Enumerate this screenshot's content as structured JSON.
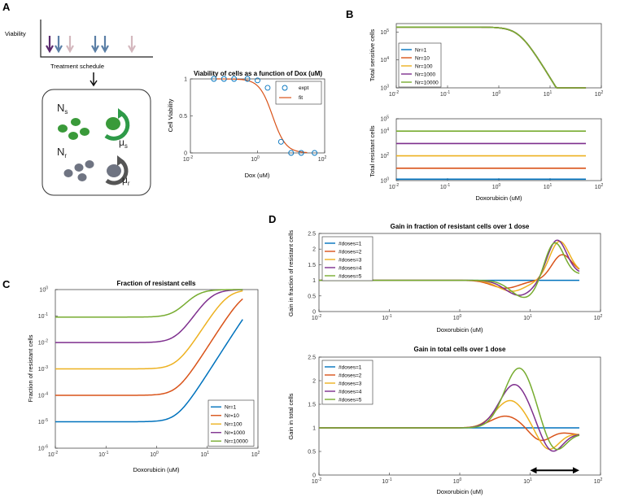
{
  "panels": {
    "a": "A",
    "b": "B",
    "c": "C",
    "d": "D"
  },
  "schematic": {
    "viability_label": "Viability",
    "schedule_label": "Treatment schedule",
    "ns": "N",
    "ns_sub": "s",
    "nr": "N",
    "nr_sub": "r",
    "mu_s": "μ",
    "mu_s_sub": "s",
    "mu_r": "μ",
    "mu_r_sub": "r",
    "arrow_colors": [
      "#5b2a6e",
      "#5b7fa6",
      "#d4b8be"
    ]
  },
  "colors": {
    "blue": "#0072bd",
    "orange": "#d95319",
    "yellow": "#edb120",
    "purple": "#7e2f8e",
    "green": "#77ac30",
    "expt": "#0072bd",
    "fit": "#d95319"
  },
  "chart_data": [
    {
      "id": "viability",
      "type": "scatter",
      "title": "Viability of cells as a function of Dox (uM)",
      "xlabel": "Dox (uM)",
      "ylabel": "Cell Viability",
      "xscale": "log",
      "xlim": [
        0.01,
        100
      ],
      "ylim": [
        0,
        1
      ],
      "xticks": [
        "10",
        "10",
        "10"
      ],
      "xtick_exp": [
        "-2",
        "0",
        "2"
      ],
      "yticks": [
        "0",
        "0.5",
        "1"
      ],
      "legend": {
        "expt": "expt",
        "fit": "fit",
        "position": "top-right"
      },
      "series": [
        {
          "name": "expt",
          "x": [
            0.05,
            0.1,
            0.2,
            0.5,
            1,
            2,
            5,
            10,
            20,
            50
          ],
          "y": [
            1.0,
            1.0,
            1.0,
            1.0,
            0.98,
            0.88,
            0.15,
            0.0,
            0.0,
            0.0
          ]
        },
        {
          "name": "fit",
          "curve": "hill",
          "top": 1.0,
          "ic50": 2.8,
          "hill": 2.2
        }
      ]
    },
    {
      "id": "sensitive",
      "type": "line",
      "title": "",
      "xlabel": "",
      "ylabel": "Total sensitive cells",
      "xscale": "log",
      "yscale": "log",
      "xlim": [
        0.01,
        100
      ],
      "ylim": [
        1000,
        200000
      ],
      "xticks": [
        "10",
        "10",
        "10",
        "10",
        "10"
      ],
      "xtick_exp": [
        "-2",
        "-1",
        "0",
        "1",
        "2"
      ],
      "yticks": [
        "10",
        "10",
        "10"
      ],
      "ytick_exp": [
        "3",
        "4",
        "5"
      ],
      "legend_position": "top-left",
      "series": [
        {
          "name": "Nr=1",
          "start": 150000,
          "ic50": 2.5,
          "hill": 3.0,
          "xmax": 50
        },
        {
          "name": "Nr=10",
          "start": 150000,
          "ic50": 2.5,
          "hill": 3.0,
          "xmax": 50
        },
        {
          "name": "Nr=100",
          "start": 150000,
          "ic50": 2.5,
          "hill": 3.0,
          "xmax": 50
        },
        {
          "name": "Nr=1000",
          "start": 150000,
          "ic50": 2.5,
          "hill": 3.0,
          "xmax": 50
        },
        {
          "name": "Nr=10000",
          "start": 150000,
          "ic50": 2.5,
          "hill": 3.0,
          "xmax": 50
        }
      ]
    },
    {
      "id": "resistant",
      "type": "line",
      "title": "",
      "xlabel": "Doxorubicin (uM)",
      "ylabel": "Total resistant cells",
      "xscale": "log",
      "yscale": "log",
      "xlim": [
        0.01,
        100
      ],
      "ylim": [
        1,
        100000
      ],
      "xticks": [
        "10",
        "10",
        "10",
        "10",
        "10"
      ],
      "xtick_exp": [
        "-2",
        "-1",
        "0",
        "1",
        "2"
      ],
      "yticks": [
        "10",
        "10",
        "10",
        "10"
      ],
      "ytick_exp": [
        "0",
        "2",
        "4",
        "5"
      ],
      "legend_position": "none",
      "series": [
        {
          "name": "Nr=1",
          "value": 1.3
        },
        {
          "name": "Nr=10",
          "value": 10
        },
        {
          "name": "Nr=100",
          "value": 100
        },
        {
          "name": "Nr=1000",
          "value": 1000
        },
        {
          "name": "Nr=10000",
          "value": 10000
        }
      ]
    },
    {
      "id": "fraction",
      "type": "line",
      "title": "Fraction of resistant cells",
      "xlabel": "Doxorubicin (uM)",
      "ylabel": "Fraction of resistant cells",
      "xscale": "log",
      "yscale": "log",
      "xlim": [
        0.01,
        100
      ],
      "ylim": [
        1e-06,
        1
      ],
      "xticks": [
        "10",
        "10",
        "10",
        "10",
        "10"
      ],
      "xtick_exp": [
        "-2",
        "-1",
        "0",
        "1",
        "2"
      ],
      "yticks": [
        "10",
        "10",
        "10",
        "10",
        "10",
        "10",
        "10"
      ],
      "ytick_exp": [
        "-6",
        "-5",
        "-4",
        "-3",
        "-2",
        "-1",
        "0"
      ],
      "legend_position": "bottom-right",
      "series": [
        {
          "name": "Nr=1",
          "f0": 1e-05
        },
        {
          "name": "Nr=10",
          "f0": 0.0001
        },
        {
          "name": "Nr=100",
          "f0": 0.001
        },
        {
          "name": "Nr=1000",
          "f0": 0.0099
        },
        {
          "name": "Nr=10000",
          "f0": 0.091
        }
      ],
      "sensitive_model": {
        "ic50": 2.5,
        "hill": 3.0,
        "xmax": 50
      }
    },
    {
      "id": "gain_fraction",
      "type": "line",
      "title": "Gain in fraction of resistant cells over 1 dose",
      "xlabel": "Doxorubicin (uM)",
      "ylabel": "Gain in fraction of resistant cells",
      "xscale": "log",
      "xlim": [
        0.01,
        100
      ],
      "ylim": [
        0,
        2.5
      ],
      "xticks": [
        "10",
        "10",
        "10",
        "10",
        "10"
      ],
      "xtick_exp": [
        "-2",
        "-1",
        "0",
        "1",
        "2"
      ],
      "yticks": [
        "0",
        "0.5",
        "1",
        "1.5",
        "2",
        "2.5"
      ],
      "legend_position": "top-left",
      "series": [
        {
          "name": "#doses=1",
          "dip": 0,
          "dip_at": 6,
          "peak": 0,
          "peak_at": 25,
          "end": 1.0
        },
        {
          "name": "#doses=2",
          "dip": 0.25,
          "dip_at": 4.5,
          "peak": 0.78,
          "peak_at": 28,
          "end": 1.4
        },
        {
          "name": "#doses=3",
          "dip": 0.35,
          "dip_at": 5.5,
          "peak": 1.22,
          "peak_at": 26,
          "end": 1.42
        },
        {
          "name": "#doses=4",
          "dip": 0.48,
          "dip_at": 7,
          "peak": 1.28,
          "peak_at": 24,
          "end": 1.38
        },
        {
          "name": "#doses=5",
          "dip": 0.56,
          "dip_at": 8.5,
          "peak": 1.25,
          "peak_at": 22,
          "end": 1.35
        }
      ]
    },
    {
      "id": "gain_total",
      "type": "line",
      "title": "Gain in total cells over 1 dose",
      "xlabel": "Doxorubicin (uM)",
      "ylabel": "Gain in total cells",
      "xscale": "log",
      "xlim": [
        0.01,
        100
      ],
      "ylim": [
        0,
        2.5
      ],
      "xticks": [
        "10",
        "10",
        "10",
        "10",
        "10"
      ],
      "xtick_exp": [
        "-2",
        "-1",
        "0",
        "1",
        "2"
      ],
      "yticks": [
        "0",
        "0.5",
        "1",
        "1.5",
        "2",
        "2.5"
      ],
      "legend_position": "top-left",
      "annotation": {
        "type": "double-arrow",
        "x_from": 10,
        "x_to": 50,
        "y": 0.1
      },
      "series": [
        {
          "name": "#doses=1",
          "peak": 0,
          "peak_at": 4.5,
          "dip": 0,
          "dip_at": 14,
          "end": 1.0
        },
        {
          "name": "#doses=2",
          "peak": 0.25,
          "peak_at": 4.5,
          "dip": 0.27,
          "dip_at": 14,
          "end": 0.7
        },
        {
          "name": "#doses=3",
          "peak": 0.58,
          "peak_at": 5.2,
          "dip": 0.45,
          "dip_at": 18,
          "end": 0.72
        },
        {
          "name": "#doses=4",
          "peak": 0.92,
          "peak_at": 6,
          "dip": 0.5,
          "dip_at": 20,
          "end": 0.73
        },
        {
          "name": "#doses=5",
          "peak": 1.27,
          "peak_at": 7,
          "dip": 0.48,
          "dip_at": 22,
          "end": 0.74
        }
      ]
    }
  ]
}
